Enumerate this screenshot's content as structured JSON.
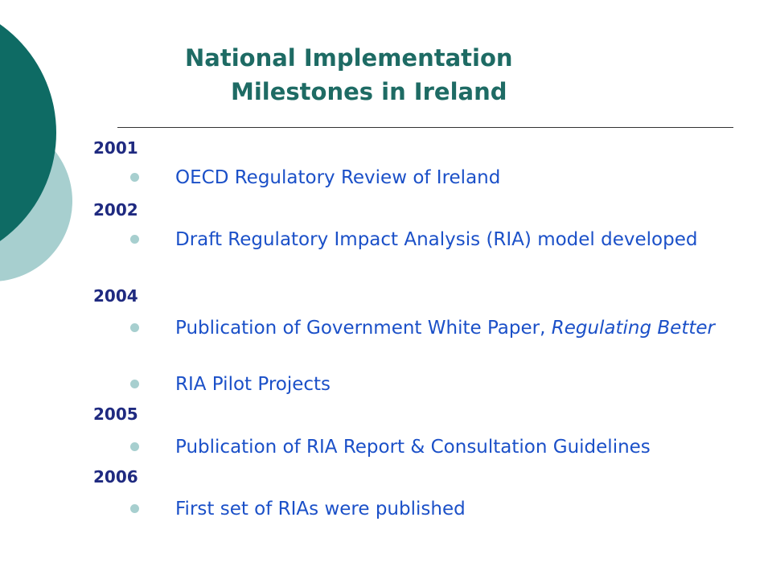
{
  "title": {
    "line1": "National Implementation",
    "line2": "Milestones in Ireland"
  },
  "colors": {
    "title": "#1e6b64",
    "year": "#1f2a80",
    "item": "#1b50c8",
    "bullet": "#a7cfcf",
    "deco_dark": "#0e6b64",
    "deco_light": "#a7cfcf"
  },
  "milestones": [
    {
      "year": "2001",
      "items": [
        {
          "text": "OECD Regulatory Review of Ireland"
        }
      ]
    },
    {
      "year": "2002",
      "items": [
        {
          "text": "Draft Regulatory Impact Analysis (RIA) model developed"
        }
      ]
    },
    {
      "year": "2004",
      "items": [
        {
          "text": "Publication of Government White Paper, ",
          "italic": "Regulating Better"
        },
        {
          "text": "RIA Pilot Projects"
        }
      ]
    },
    {
      "year": "2005",
      "items": [
        {
          "text": "Publication of RIA Report & Consultation Guidelines"
        }
      ]
    },
    {
      "year": "2006",
      "items": [
        {
          "text": "First set of RIAs were published"
        }
      ]
    }
  ]
}
